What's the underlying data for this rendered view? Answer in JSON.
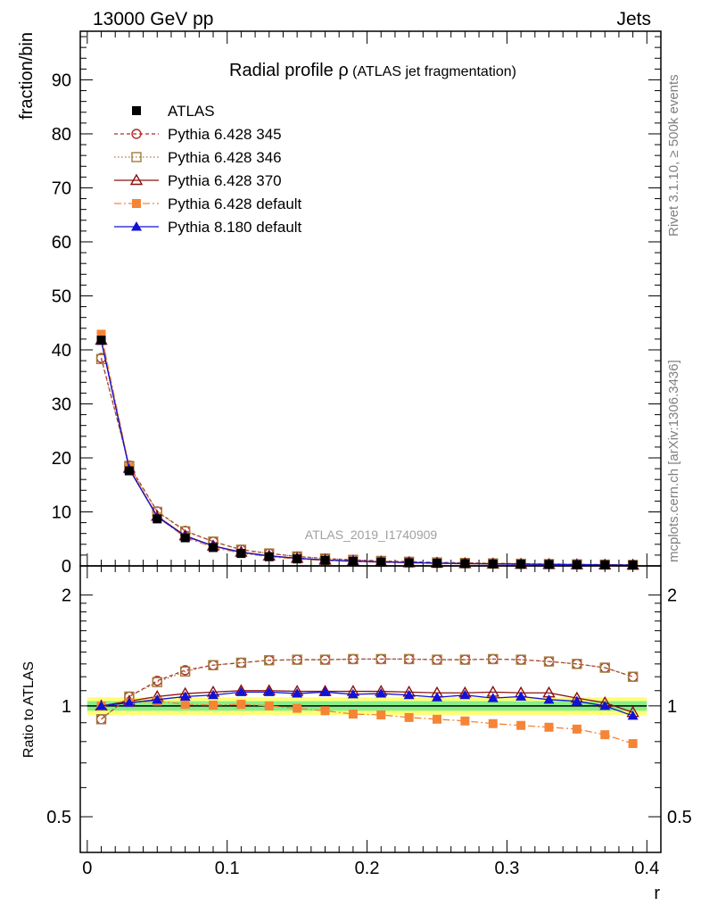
{
  "header": {
    "left": "13000 GeV pp",
    "right": "Jets"
  },
  "side_text": {
    "right_top": "Rivet 3.1.10, ≥ 500k events",
    "right_bottom": "mcplots.cern.ch [arXiv:1306.3436]"
  },
  "analysis_tag": "ATLAS_2019_I1740909",
  "colors": {
    "data": "#000000",
    "p345": "#b02b2b",
    "p346": "#a07c3c",
    "p370": "#8a1010",
    "p6def": "#f58436",
    "p8def": "#1212d4",
    "band_yellow": "#ffff77",
    "band_green": "#88ee88"
  },
  "chart_data": [
    {
      "type": "line",
      "title_main": "Radial profile ",
      "title_symbol": "ρ",
      "title_sub": " (ATLAS jet fragmentation)",
      "xlabel": "",
      "ylabel": "fraction/bin",
      "xlim": [
        -0.005,
        0.41
      ],
      "ylim": [
        0,
        99
      ],
      "yticks": [
        0,
        10,
        20,
        30,
        40,
        50,
        60,
        70,
        80,
        90
      ],
      "grid": false,
      "legend": "top-left",
      "x": [
        0.01,
        0.03,
        0.05,
        0.07,
        0.09,
        0.11,
        0.13,
        0.15,
        0.17,
        0.19,
        0.21,
        0.23,
        0.25,
        0.27,
        0.29,
        0.31,
        0.33,
        0.35,
        0.37,
        0.39
      ],
      "series": [
        {
          "name": "ATLAS",
          "key": "data",
          "style": "data",
          "values": [
            41.8,
            17.6,
            8.7,
            5.2,
            3.4,
            2.3,
            1.7,
            1.3,
            1.02,
            0.83,
            0.68,
            0.57,
            0.48,
            0.41,
            0.35,
            0.3,
            0.26,
            0.22,
            0.19,
            0.16
          ]
        },
        {
          "name": "Pythia 6.428 345",
          "key": "p345",
          "style": "circle",
          "values": [
            38.5,
            18.6,
            10.1,
            6.5,
            4.5,
            3.0,
            2.3,
            1.75,
            1.37,
            1.12,
            0.92,
            0.77,
            0.65,
            0.55,
            0.47,
            0.4,
            0.34,
            0.29,
            0.24,
            0.19
          ]
        },
        {
          "name": "Pythia 6.428 346",
          "key": "p346",
          "style": "square",
          "values": [
            38.3,
            18.5,
            10.0,
            6.4,
            4.5,
            3.0,
            2.3,
            1.75,
            1.37,
            1.12,
            0.92,
            0.77,
            0.65,
            0.55,
            0.47,
            0.4,
            0.34,
            0.29,
            0.24,
            0.19
          ]
        },
        {
          "name": "Pythia 6.428 370",
          "key": "p370",
          "style": "triangle-open",
          "values": [
            41.8,
            18.1,
            9.2,
            5.6,
            3.7,
            2.55,
            1.85,
            1.42,
            1.1,
            0.9,
            0.74,
            0.62,
            0.52,
            0.44,
            0.38,
            0.32,
            0.28,
            0.23,
            0.19,
            0.16
          ]
        },
        {
          "name": "Pythia 6.428 default",
          "key": "p6def",
          "style": "square-filled",
          "values": [
            42.9,
            18.3,
            9.1,
            5.3,
            3.4,
            2.35,
            1.7,
            1.28,
            0.99,
            0.8,
            0.65,
            0.54,
            0.45,
            0.38,
            0.32,
            0.27,
            0.23,
            0.19,
            0.16,
            0.13
          ]
        },
        {
          "name": "Pythia 8.180 default",
          "key": "p8def",
          "style": "triangle-filled",
          "values": [
            41.7,
            17.9,
            9.1,
            5.5,
            3.7,
            2.5,
            1.85,
            1.4,
            1.1,
            0.9,
            0.74,
            0.62,
            0.52,
            0.43,
            0.37,
            0.32,
            0.27,
            0.23,
            0.19,
            0.15
          ]
        }
      ]
    },
    {
      "type": "line",
      "xlabel": "r",
      "ylabel": "Ratio to ATLAS",
      "yscale": "log",
      "xlim": [
        -0.005,
        0.41
      ],
      "ylim": [
        0.4,
        2.4
      ],
      "xticks": [
        0,
        0.1,
        0.2,
        0.3,
        0.4
      ],
      "xtick_labels": [
        "0",
        "0.1",
        "0.2",
        "0.3",
        "0.4"
      ],
      "yticks": [
        0.5,
        1,
        2
      ],
      "ytick_labels": [
        "0.5",
        "1",
        "2"
      ],
      "band_yellow": 0.055,
      "band_green": 0.03,
      "x": [
        0.01,
        0.03,
        0.05,
        0.07,
        0.09,
        0.11,
        0.13,
        0.15,
        0.17,
        0.19,
        0.21,
        0.23,
        0.25,
        0.27,
        0.29,
        0.31,
        0.33,
        0.35,
        0.37,
        0.39
      ],
      "series": [
        {
          "name": "Pythia 6.428 345",
          "key": "p345",
          "style": "circle",
          "values": [
            0.92,
            1.06,
            1.17,
            1.25,
            1.29,
            1.31,
            1.33,
            1.335,
            1.335,
            1.34,
            1.34,
            1.34,
            1.335,
            1.335,
            1.34,
            1.335,
            1.32,
            1.3,
            1.27,
            1.2
          ]
        },
        {
          "name": "Pythia 6.428 346",
          "key": "p346",
          "style": "square",
          "values": [
            0.92,
            1.06,
            1.16,
            1.24,
            1.29,
            1.31,
            1.33,
            1.335,
            1.335,
            1.34,
            1.34,
            1.34,
            1.335,
            1.335,
            1.34,
            1.335,
            1.32,
            1.3,
            1.27,
            1.2
          ]
        },
        {
          "name": "Pythia 6.428 370",
          "key": "p370",
          "style": "triangle-open",
          "values": [
            1.0,
            1.03,
            1.06,
            1.08,
            1.09,
            1.1,
            1.1,
            1.095,
            1.095,
            1.095,
            1.095,
            1.09,
            1.085,
            1.085,
            1.09,
            1.085,
            1.085,
            1.05,
            1.02,
            0.96
          ]
        },
        {
          "name": "Pythia 6.428 default",
          "key": "p6def",
          "style": "square-filled",
          "values": [
            1.0,
            1.02,
            1.03,
            1.01,
            1.005,
            1.01,
            1.0,
            0.985,
            0.97,
            0.95,
            0.945,
            0.93,
            0.92,
            0.91,
            0.895,
            0.885,
            0.875,
            0.865,
            0.835,
            0.79
          ]
        },
        {
          "name": "Pythia 8.180 default",
          "key": "p8def",
          "style": "triangle-filled",
          "values": [
            1.0,
            1.02,
            1.04,
            1.06,
            1.07,
            1.09,
            1.09,
            1.08,
            1.09,
            1.075,
            1.08,
            1.07,
            1.055,
            1.07,
            1.05,
            1.06,
            1.04,
            1.03,
            1.0,
            0.94
          ]
        }
      ]
    }
  ]
}
